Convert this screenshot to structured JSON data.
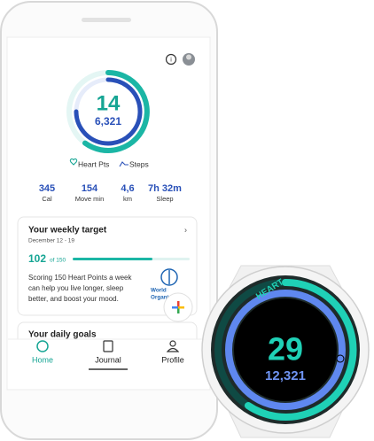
{
  "phone": {
    "ring": {
      "heart_points": "14",
      "steps": "6,321"
    },
    "legend": {
      "heart": "Heart Pts",
      "steps": "Steps"
    },
    "stats": [
      {
        "value": "345",
        "label": "Cal"
      },
      {
        "value": "154",
        "label": "Move min"
      },
      {
        "value": "4,6",
        "label": "km"
      },
      {
        "value": "7h 32m",
        "label": "Sleep"
      }
    ],
    "weekly_card": {
      "title": "Your weekly target",
      "dates": "December 12 - 19",
      "progress": "102",
      "goal": "of 150",
      "text": [
        "Scoring 150 Heart Points a week",
        "can help you live longer, sleep",
        "better, and boost your mood."
      ],
      "logo": [
        "World Health",
        "Organization"
      ]
    },
    "daily_card": {
      "title": "Your daily goals"
    },
    "nav": [
      "Home",
      "Journal",
      "Profile"
    ]
  },
  "watch": {
    "label": "HEART",
    "heart_points": "29",
    "steps": "12,321"
  }
}
